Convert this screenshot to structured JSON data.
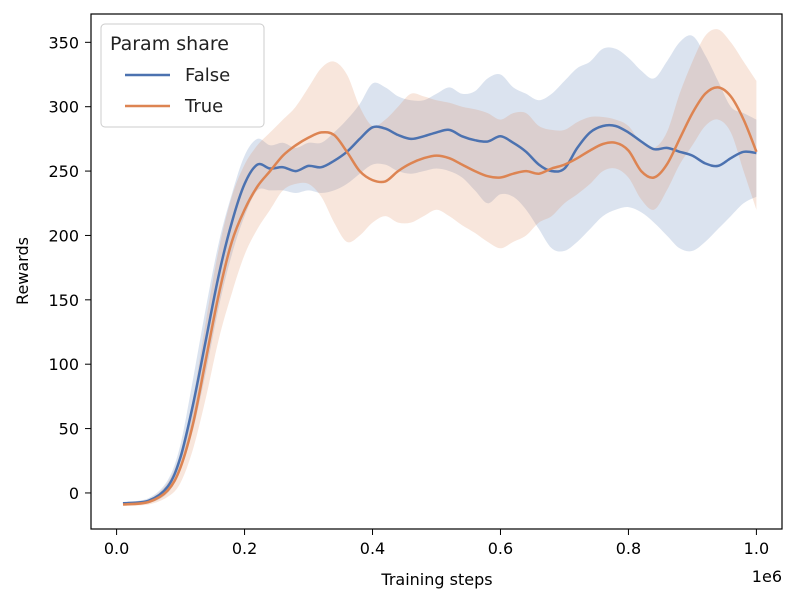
{
  "chart_data": {
    "type": "line",
    "title": "",
    "xlabel": "Training steps",
    "ylabel": "Rewards",
    "x_offset_label": "1e6",
    "xlim": [
      -0.04,
      1.04
    ],
    "ylim": [
      -28,
      372
    ],
    "x_ticks": [
      0.0,
      0.2,
      0.4,
      0.6,
      0.8,
      1.0
    ],
    "x_tick_labels": [
      "0.0",
      "0.2",
      "0.4",
      "0.6",
      "0.8",
      "1.0"
    ],
    "y_ticks": [
      0,
      50,
      100,
      150,
      200,
      250,
      300,
      350
    ],
    "y_tick_labels": [
      "0",
      "50",
      "100",
      "150",
      "200",
      "250",
      "300",
      "350"
    ],
    "legend": {
      "title": "Param share",
      "position": "top-left"
    },
    "series": [
      {
        "name": "False",
        "color": "#4c72b0",
        "x": [
          0.01,
          0.05,
          0.08,
          0.1,
          0.12,
          0.14,
          0.16,
          0.18,
          0.2,
          0.22,
          0.24,
          0.26,
          0.28,
          0.3,
          0.32,
          0.34,
          0.36,
          0.38,
          0.4,
          0.42,
          0.44,
          0.46,
          0.48,
          0.5,
          0.52,
          0.54,
          0.56,
          0.58,
          0.6,
          0.62,
          0.64,
          0.66,
          0.68,
          0.7,
          0.72,
          0.74,
          0.76,
          0.78,
          0.8,
          0.82,
          0.84,
          0.86,
          0.88,
          0.9,
          0.92,
          0.94,
          0.96,
          0.98,
          1.0
        ],
        "y": [
          -8,
          -6,
          5,
          28,
          70,
          120,
          170,
          210,
          240,
          255,
          252,
          253,
          250,
          254,
          253,
          258,
          265,
          275,
          284,
          283,
          278,
          275,
          277,
          280,
          282,
          277,
          274,
          273,
          277,
          272,
          265,
          255,
          250,
          252,
          268,
          280,
          285,
          285,
          280,
          273,
          267,
          268,
          265,
          262,
          256,
          254,
          260,
          265,
          264
        ],
        "lower": [
          -9,
          -8,
          0,
          18,
          50,
          95,
          145,
          185,
          215,
          235,
          235,
          235,
          233,
          235,
          233,
          235,
          240,
          248,
          255,
          255,
          250,
          248,
          250,
          252,
          250,
          245,
          235,
          225,
          232,
          230,
          220,
          205,
          190,
          188,
          195,
          205,
          215,
          220,
          222,
          218,
          210,
          200,
          190,
          188,
          195,
          205,
          215,
          225,
          230
        ],
        "upper": [
          -7,
          -4,
          10,
          38,
          90,
          145,
          195,
          232,
          262,
          275,
          270,
          272,
          268,
          272,
          272,
          280,
          290,
          302,
          318,
          315,
          308,
          305,
          305,
          310,
          315,
          310,
          312,
          322,
          325,
          315,
          310,
          305,
          310,
          320,
          330,
          335,
          345,
          345,
          338,
          328,
          322,
          335,
          350,
          355,
          340,
          320,
          300,
          295,
          290
        ]
      },
      {
        "name": "True",
        "color": "#dd8452",
        "x": [
          0.01,
          0.05,
          0.08,
          0.1,
          0.12,
          0.14,
          0.16,
          0.18,
          0.2,
          0.22,
          0.24,
          0.26,
          0.28,
          0.3,
          0.32,
          0.34,
          0.36,
          0.38,
          0.4,
          0.42,
          0.44,
          0.46,
          0.48,
          0.5,
          0.52,
          0.54,
          0.56,
          0.58,
          0.6,
          0.62,
          0.64,
          0.66,
          0.68,
          0.7,
          0.72,
          0.74,
          0.76,
          0.78,
          0.8,
          0.82,
          0.84,
          0.86,
          0.88,
          0.9,
          0.92,
          0.94,
          0.96,
          0.98,
          1.0
        ],
        "y": [
          -9,
          -7,
          2,
          20,
          55,
          105,
          155,
          195,
          220,
          238,
          250,
          262,
          270,
          276,
          280,
          278,
          265,
          250,
          243,
          242,
          250,
          256,
          260,
          262,
          260,
          255,
          250,
          246,
          245,
          248,
          250,
          248,
          252,
          255,
          260,
          266,
          271,
          272,
          266,
          250,
          245,
          255,
          275,
          295,
          310,
          315,
          308,
          290,
          265
        ],
        "lower": [
          -10,
          -9,
          -3,
          8,
          35,
          75,
          120,
          155,
          185,
          205,
          220,
          235,
          240,
          240,
          230,
          210,
          195,
          200,
          210,
          215,
          210,
          210,
          215,
          220,
          215,
          208,
          202,
          195,
          190,
          195,
          200,
          210,
          215,
          225,
          232,
          240,
          250,
          252,
          245,
          228,
          220,
          235,
          255,
          270,
          285,
          290,
          280,
          250,
          220
        ],
        "upper": [
          -8,
          -5,
          8,
          32,
          75,
          135,
          190,
          230,
          255,
          270,
          280,
          290,
          300,
          315,
          330,
          335,
          325,
          300,
          285,
          290,
          300,
          310,
          308,
          305,
          303,
          300,
          298,
          295,
          290,
          295,
          295,
          285,
          282,
          282,
          288,
          292,
          292,
          290,
          285,
          272,
          268,
          280,
          310,
          335,
          355,
          360,
          350,
          335,
          320
        ]
      }
    ]
  }
}
